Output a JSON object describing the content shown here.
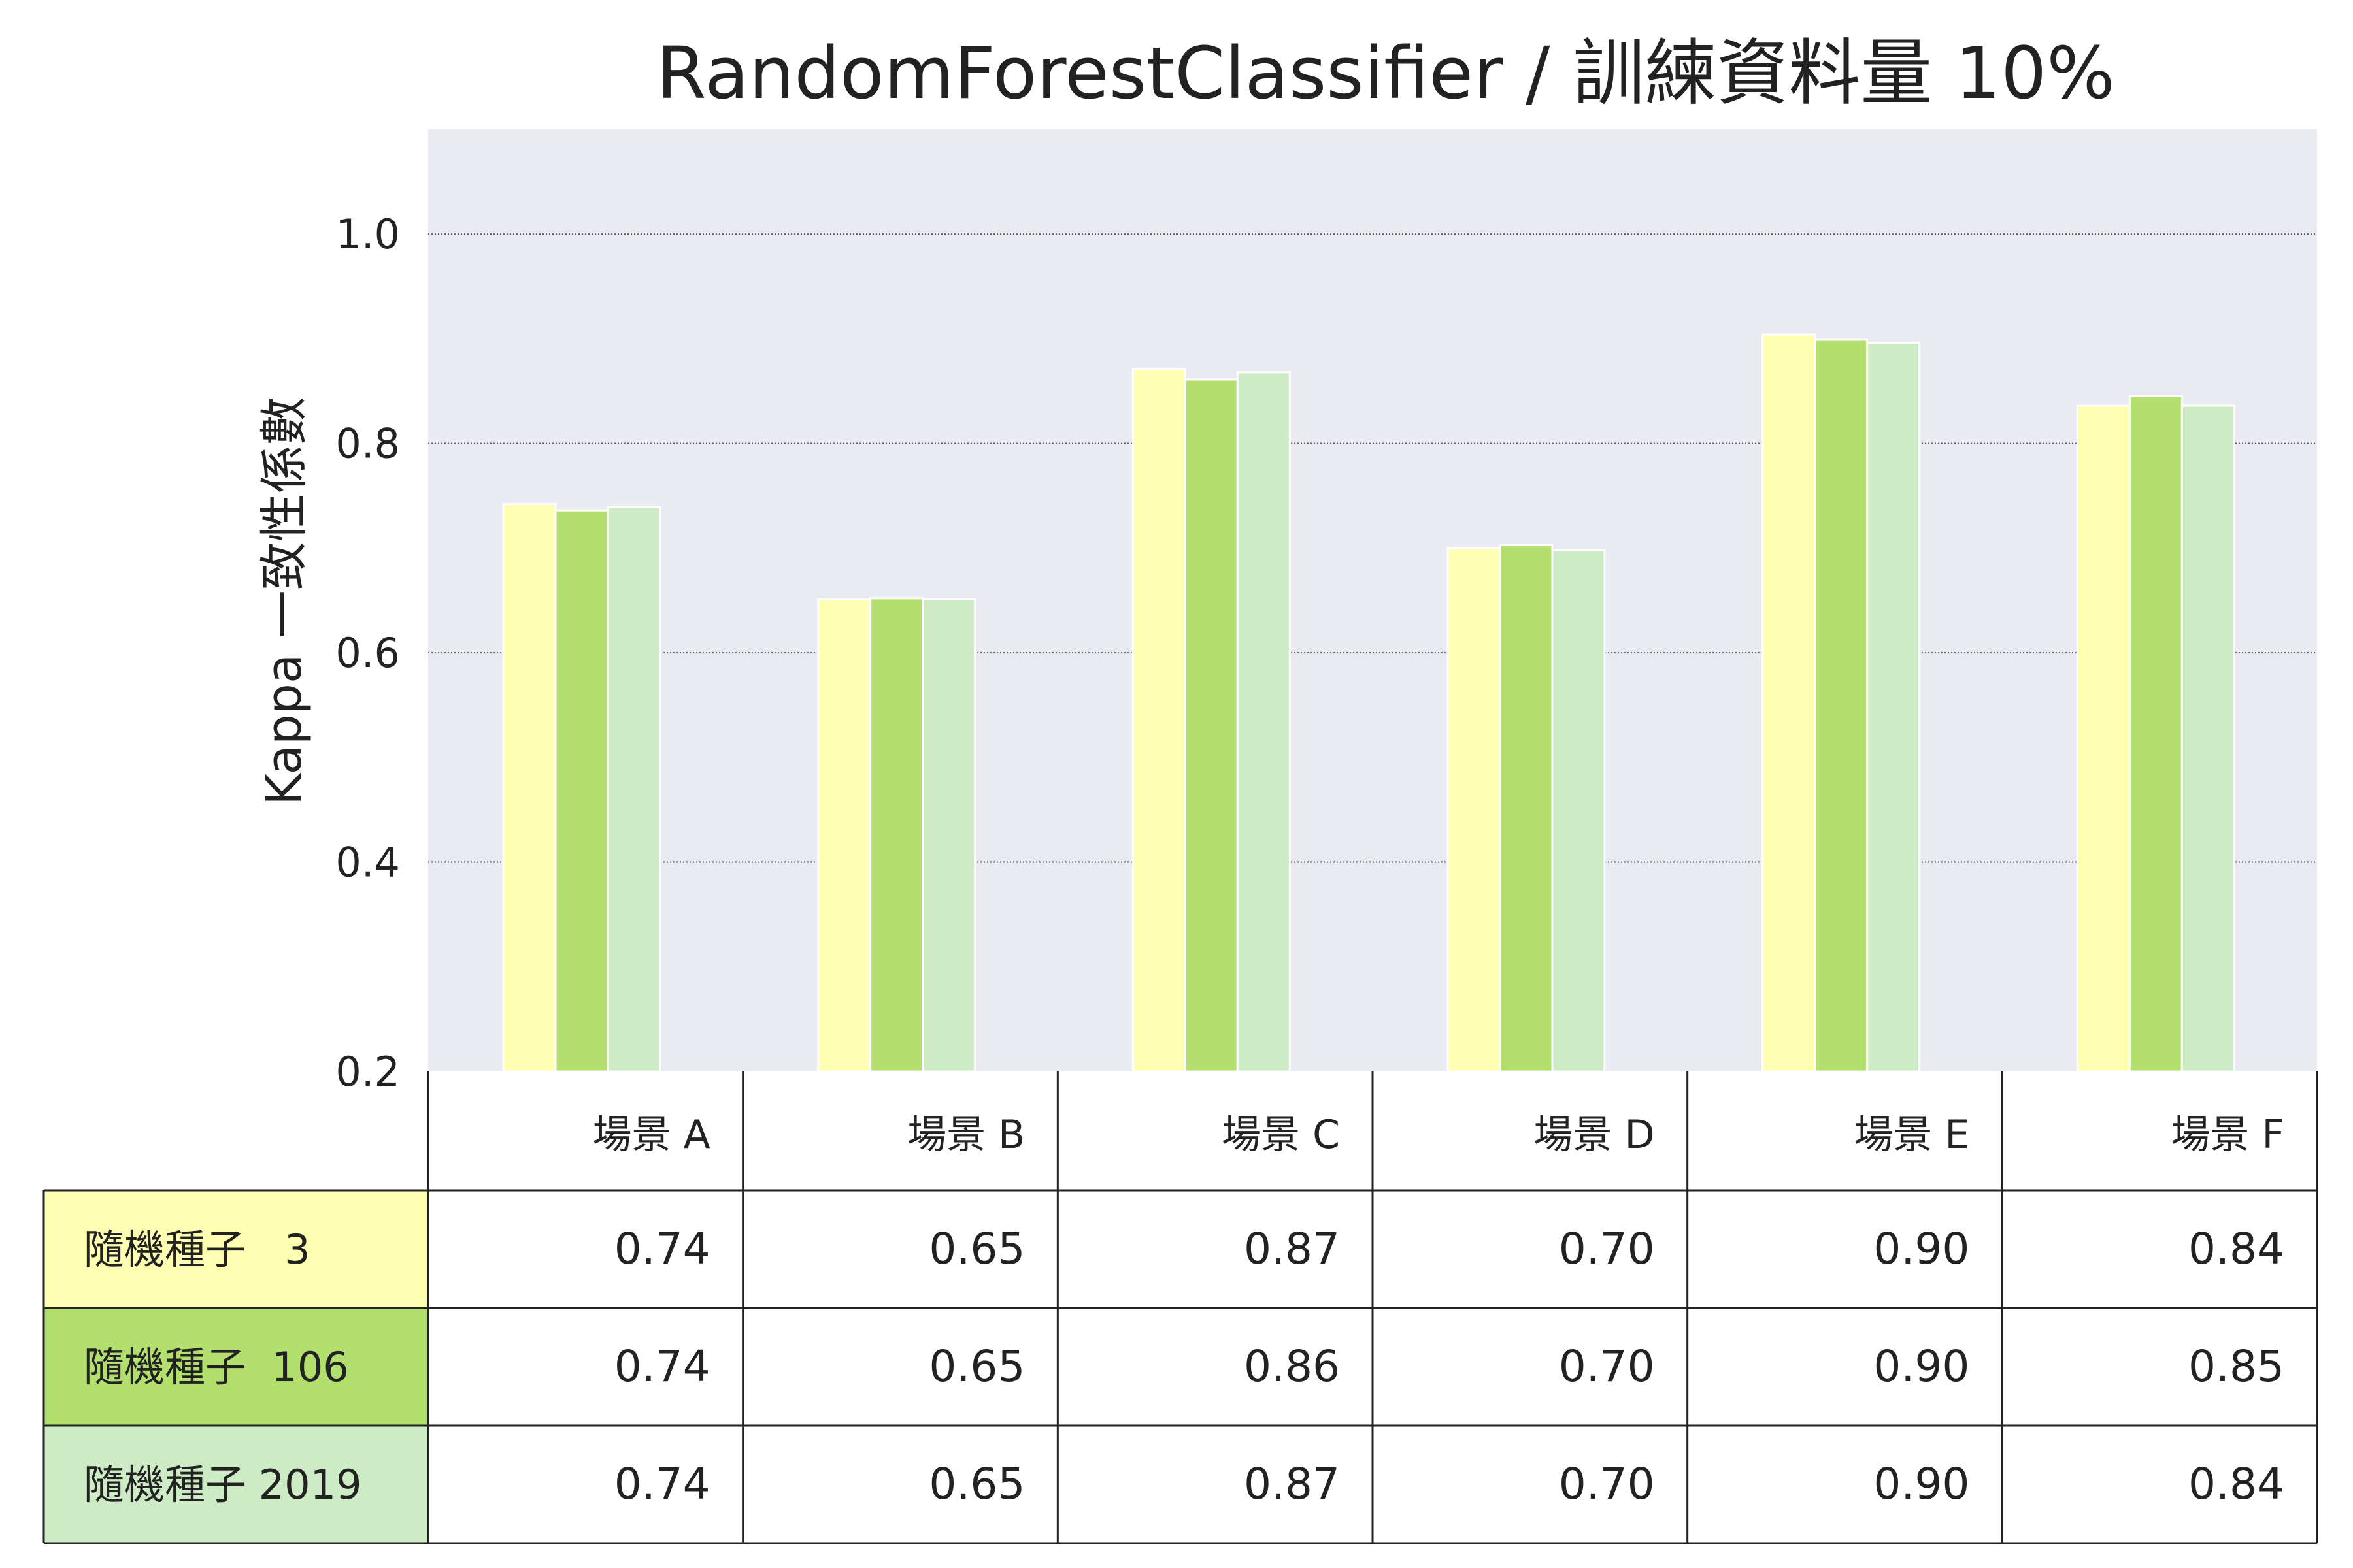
{
  "chart_data": {
    "type": "bar",
    "title": "RandomForestClassifier / 訓練資料量 10%",
    "xlabel": "",
    "ylabel": "Kappa 一致性係數",
    "ylim": [
      0.2,
      1.1
    ],
    "yticks": [
      "0.2",
      "0.4",
      "0.6",
      "0.8",
      "1.0"
    ],
    "grid": true,
    "legend": "table-left",
    "background_color": "#eaeaf2",
    "categories": [
      "場景 A",
      "場景 B",
      "場景 C",
      "場景 D",
      "場景 E",
      "場景 F"
    ],
    "series": [
      {
        "name": "隨機種子   3",
        "color": "#ffffb2",
        "values": [
          0.742,
          0.651,
          0.871,
          0.7,
          0.904,
          0.836
        ],
        "labels": [
          "0.74",
          "0.65",
          "0.87",
          "0.70",
          "0.90",
          "0.84"
        ]
      },
      {
        "name": "隨機種子  106",
        "color": "#b2df6e",
        "values": [
          0.736,
          0.652,
          0.861,
          0.703,
          0.899,
          0.845
        ],
        "labels": [
          "0.74",
          "0.65",
          "0.86",
          "0.70",
          "0.90",
          "0.85"
        ]
      },
      {
        "name": "隨機種子 2019",
        "color": "#cdebc5",
        "values": [
          0.739,
          0.651,
          0.868,
          0.698,
          0.896,
          0.836
        ],
        "labels": [
          "0.74",
          "0.65",
          "0.87",
          "0.70",
          "0.90",
          "0.84"
        ]
      }
    ]
  }
}
